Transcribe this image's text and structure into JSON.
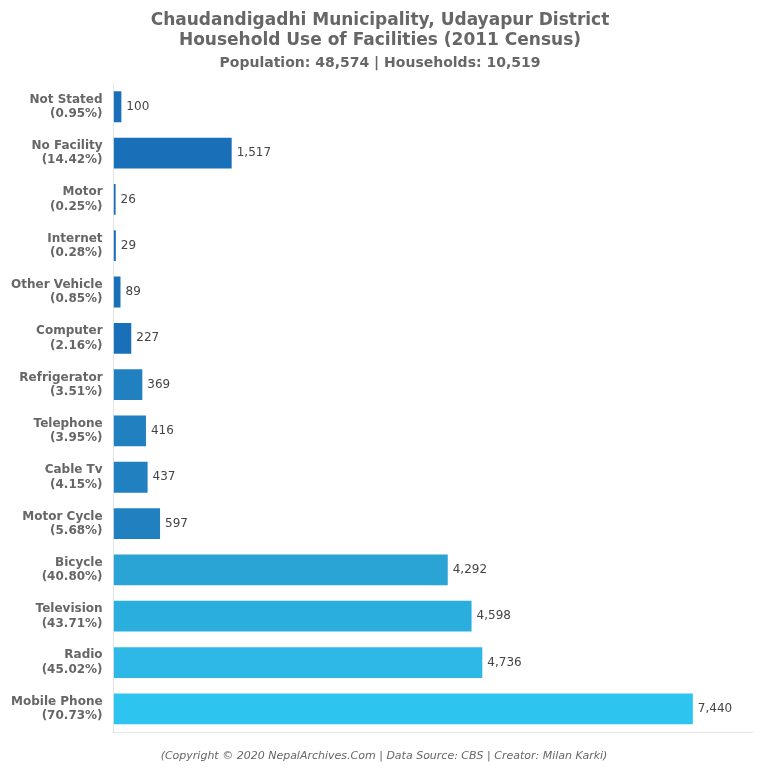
{
  "chart_data": {
    "type": "bar",
    "orientation": "horizontal",
    "title": [
      "Chaudandigadhi Municipality, Udayapur District",
      "Household Use of Facilities (2011 Census)"
    ],
    "subtitle": "Population: 48,574 | Households: 10,519",
    "footer": "(Copyright © 2020 NepalArchives.Com | Data Source: CBS | Creator: Milan Karki)",
    "categories": [
      "Mobile Phone\n(70.73%)",
      "Radio\n(45.02%)",
      "Television\n(43.71%)",
      "Bicycle\n(40.80%)",
      "Motor Cycle\n(5.68%)",
      "Cable Tv\n(4.15%)",
      "Telephone\n(3.95%)",
      "Refrigerator\n(3.51%)",
      "Computer\n(2.16%)",
      "Other Vehicle\n(0.85%)",
      "Internet\n(0.28%)",
      "Motor\n(0.25%)",
      "No Facility\n(14.42%)",
      "Not Stated\n(0.95%)"
    ],
    "values": [
      7440,
      4736,
      4598,
      4292,
      597,
      437,
      416,
      369,
      227,
      89,
      29,
      26,
      1517,
      100
    ],
    "value_labels": [
      "7,440",
      "4,736",
      "4,598",
      "4,292",
      "597",
      "437",
      "416",
      "369",
      "227",
      "89",
      "29",
      "26",
      "1,517",
      "100"
    ],
    "data_labels": true,
    "colors": [
      "#2ec4f0",
      "#2eb8e8",
      "#2aaede",
      "#2aa4d4",
      "#2080c0",
      "#2080c0",
      "#2080c0",
      "#2080c0",
      "#1a70b8",
      "#1a70b8",
      "#1a70b8",
      "#1a70b8",
      "#1a70b8",
      "#1a70b8"
    ],
    "xlim": [
      0,
      8200
    ],
    "grid": false,
    "tick_labels": "y"
  }
}
